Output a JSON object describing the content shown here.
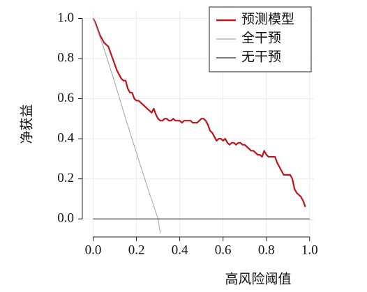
{
  "chart_data": {
    "type": "line",
    "xlabel": "高风险阈值",
    "ylabel": "净获益",
    "xlim": [
      -0.05,
      1.02
    ],
    "ylim": [
      -0.09,
      1.04
    ],
    "xticks": [
      {
        "value": 0,
        "label": "0.0"
      },
      0.2,
      0.4,
      0.6,
      0.8,
      {
        "value": 1,
        "label": "1.0"
      }
    ],
    "yticks": [
      {
        "value": 0,
        "label": "0.0"
      },
      0.2,
      0.4,
      0.6,
      0.8,
      {
        "value": 1,
        "label": "1.0"
      }
    ],
    "grid": true,
    "legend": "upper right",
    "series": [
      {
        "name": "预测模型",
        "color": "#c0141c",
        "x": [
          0,
          0.01,
          0.02,
          0.03,
          0.04,
          0.05,
          0.06,
          0.07,
          0.08,
          0.09,
          0.1,
          0.11,
          0.12,
          0.13,
          0.14,
          0.15,
          0.16,
          0.17,
          0.18,
          0.19,
          0.2,
          0.21,
          0.22,
          0.23,
          0.24,
          0.25,
          0.26,
          0.27,
          0.28,
          0.29,
          0.3,
          0.31,
          0.32,
          0.33,
          0.34,
          0.35,
          0.36,
          0.37,
          0.38,
          0.39,
          0.4,
          0.41,
          0.42,
          0.43,
          0.44,
          0.45,
          0.46,
          0.47,
          0.48,
          0.49,
          0.5,
          0.51,
          0.52,
          0.53,
          0.54,
          0.55,
          0.56,
          0.57,
          0.58,
          0.59,
          0.6,
          0.61,
          0.62,
          0.63,
          0.64,
          0.65,
          0.66,
          0.67,
          0.68,
          0.69,
          0.7,
          0.71,
          0.72,
          0.73,
          0.74,
          0.75,
          0.76,
          0.77,
          0.78,
          0.79,
          0.8,
          0.81,
          0.82,
          0.83,
          0.84,
          0.85,
          0.86,
          0.87,
          0.88,
          0.89,
          0.9,
          0.91,
          0.92,
          0.93,
          0.94,
          0.95,
          0.96,
          0.97,
          0.98
        ],
        "values": [
          1.0,
          0.98,
          0.95,
          0.92,
          0.9,
          0.88,
          0.87,
          0.86,
          0.83,
          0.8,
          0.77,
          0.74,
          0.72,
          0.7,
          0.69,
          0.69,
          0.65,
          0.63,
          0.63,
          0.6,
          0.59,
          0.59,
          0.58,
          0.57,
          0.56,
          0.55,
          0.54,
          0.53,
          0.55,
          0.52,
          0.5,
          0.49,
          0.49,
          0.5,
          0.5,
          0.49,
          0.49,
          0.5,
          0.49,
          0.49,
          0.49,
          0.48,
          0.49,
          0.49,
          0.49,
          0.49,
          0.48,
          0.48,
          0.48,
          0.49,
          0.5,
          0.5,
          0.49,
          0.47,
          0.44,
          0.43,
          0.41,
          0.39,
          0.4,
          0.4,
          0.39,
          0.4,
          0.38,
          0.37,
          0.38,
          0.38,
          0.37,
          0.38,
          0.38,
          0.37,
          0.37,
          0.36,
          0.35,
          0.34,
          0.34,
          0.33,
          0.32,
          0.32,
          0.31,
          0.34,
          0.32,
          0.31,
          0.31,
          0.31,
          0.31,
          0.28,
          0.26,
          0.24,
          0.22,
          0.22,
          0.22,
          0.22,
          0.2,
          0.15,
          0.13,
          0.12,
          0.11,
          0.09,
          0.06
        ]
      },
      {
        "name": "全干预",
        "color": "#aaaaaa",
        "x": [
          0,
          0.05,
          0.1,
          0.15,
          0.2,
          0.25,
          0.3,
          0.31
        ],
        "values": [
          1.0,
          0.85,
          0.68,
          0.5,
          0.33,
          0.16,
          0.0,
          -0.07
        ]
      },
      {
        "name": "无干预",
        "color": "#333333",
        "x": [
          0,
          1
        ],
        "values": [
          0,
          0
        ]
      }
    ]
  }
}
